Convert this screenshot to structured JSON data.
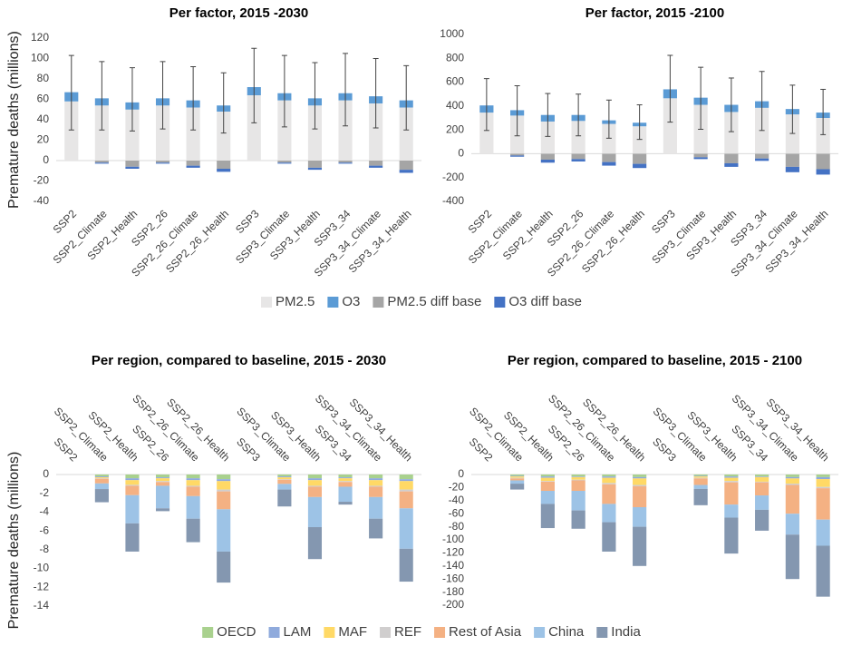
{
  "chart_data": [
    {
      "type": "bar",
      "stacked": true,
      "title": "Per factor, 2015 -2030",
      "y_label": "Premature deaths (millions)",
      "x_labels": "bottom",
      "legend": "bottom",
      "categories": [
        "SSP2",
        "SSP2_Climate",
        "SSP2_Health",
        "SSP2_26",
        "SSP2_26_Climate",
        "SSP2_26_Health",
        "SSP3",
        "SSP3_Climate",
        "SSP3_Health",
        "SSP3_34",
        "SSP3_34_Climate",
        "SSP3_34_Health"
      ],
      "series": [
        {
          "name": "PM2.5",
          "color": "#e7e6e6",
          "values": [
            58,
            54,
            50,
            54,
            52,
            48,
            64,
            59,
            54,
            59,
            56,
            52
          ]
        },
        {
          "name": "O3",
          "color": "#5b9bd5",
          "values": [
            9,
            7,
            7,
            7,
            7,
            6,
            8,
            7,
            7,
            7,
            7,
            7
          ]
        },
        {
          "name": "PM2.5 diff base",
          "color": "#a5a5a5",
          "values": [
            0,
            -2,
            -6,
            -2,
            -5,
            -8,
            0,
            -2,
            -7,
            -2,
            -5,
            -9
          ]
        },
        {
          "name": "O3 diff base",
          "color": "#4472c4",
          "values": [
            0,
            -1,
            -2,
            -1,
            -2,
            -3,
            0,
            -1,
            -2,
            -1,
            -2,
            -3
          ]
        }
      ],
      "error_bars": {
        "low": [
          30,
          30,
          29,
          31,
          30,
          27,
          37,
          33,
          31,
          34,
          32,
          30
        ],
        "high": [
          103,
          97,
          91,
          97,
          92,
          86,
          110,
          103,
          96,
          105,
          100,
          93
        ]
      },
      "ylim": [
        -40,
        120
      ],
      "yticks": [
        -40,
        -20,
        0,
        20,
        40,
        60,
        80,
        100,
        120
      ]
    },
    {
      "type": "bar",
      "stacked": true,
      "title": "Per factor, 2015 -2100",
      "x_labels": "bottom",
      "categories": [
        "SSP2",
        "SSP2_Climate",
        "SSP2_Health",
        "SSP2_26",
        "SSP2_26_Climate",
        "SSP2_26_Health",
        "SSP3",
        "SSP3_Climate",
        "SSP3_Health",
        "SSP3_34",
        "SSP3_34_Climate",
        "SSP3_34_Health"
      ],
      "series": [
        {
          "color": "#e7e6e6",
          "values": [
            345,
            320,
            270,
            275,
            250,
            230,
            465,
            410,
            350,
            385,
            330,
            300
          ]
        },
        {
          "color": "#5b9bd5",
          "values": [
            60,
            45,
            55,
            50,
            30,
            30,
            75,
            60,
            60,
            55,
            45,
            45
          ]
        },
        {
          "color": "#a5a5a5",
          "values": [
            0,
            -15,
            -50,
            -45,
            -70,
            -85,
            0,
            -30,
            -80,
            -40,
            -110,
            -130
          ]
        },
        {
          "color": "#4472c4",
          "values": [
            0,
            -10,
            -25,
            -20,
            -30,
            -35,
            0,
            -15,
            -30,
            -20,
            -45,
            -45
          ]
        }
      ],
      "error_bars": {
        "low": [
          195,
          150,
          145,
          150,
          130,
          120,
          265,
          205,
          185,
          195,
          170,
          160
        ],
        "high": [
          630,
          570,
          505,
          500,
          450,
          410,
          825,
          725,
          635,
          690,
          575,
          540
        ]
      },
      "ylim": [
        -400,
        1000
      ],
      "yticks": [
        -400,
        -200,
        0,
        200,
        400,
        600,
        800,
        1000
      ]
    },
    {
      "type": "bar",
      "stacked": true,
      "title": "Per region, compared to baseline, 2015 - 2030",
      "y_label": "Premature deaths (millions)",
      "x_labels": "top",
      "legend": "bottom",
      "categories": [
        "SSP2",
        "SSP2_Climate",
        "SSP2_Health",
        "SSP2_26",
        "SSP2_26_Climate",
        "SSP2_26_Health",
        "SSP3",
        "SSP3_Climate",
        "SSP3_Health",
        "SSP3_34",
        "SSP3_34_Climate",
        "SSP3_34_Health"
      ],
      "series": [
        {
          "name": "OECD",
          "color": "#a9d18e",
          "values": [
            0,
            -0.2,
            -0.4,
            -0.3,
            -0.4,
            -0.5,
            0,
            -0.2,
            -0.4,
            -0.3,
            -0.4,
            -0.5
          ]
        },
        {
          "name": "LAM",
          "color": "#8faadc",
          "values": [
            0,
            -0.1,
            -0.2,
            -0.1,
            -0.2,
            -0.2,
            0,
            -0.1,
            -0.2,
            -0.1,
            -0.2,
            -0.2
          ]
        },
        {
          "name": "MAF",
          "color": "#ffd966",
          "values": [
            0,
            -0.1,
            -0.5,
            -0.3,
            -0.6,
            -0.9,
            0,
            -0.2,
            -0.6,
            -0.3,
            -0.6,
            -0.9
          ]
        },
        {
          "name": "REF",
          "color": "#d0cece",
          "values": [
            0,
            -0.05,
            -0.1,
            -0.1,
            -0.1,
            -0.2,
            0,
            -0.05,
            -0.1,
            -0.1,
            -0.1,
            -0.2
          ]
        },
        {
          "name": "Rest of Asia",
          "color": "#f4b183",
          "values": [
            0,
            -0.5,
            -1.0,
            -0.4,
            -1.0,
            -1.9,
            0,
            -0.45,
            -1.1,
            -0.5,
            -1.1,
            -1.8
          ]
        },
        {
          "name": "China",
          "color": "#9dc3e6",
          "values": [
            0,
            -0.6,
            -3.0,
            -2.4,
            -2.4,
            -4.5,
            0,
            -0.6,
            -3.2,
            -1.6,
            -2.3,
            -4.3
          ]
        },
        {
          "name": "India",
          "color": "#8497b0",
          "values": [
            0,
            -1.4,
            -3.0,
            -0.3,
            -2.5,
            -3.3,
            0,
            -1.8,
            -3.4,
            -0.3,
            -2.1,
            -3.5
          ]
        }
      ],
      "ylim": [
        -14,
        0
      ],
      "yticks": [
        -14,
        -12,
        -10,
        -8,
        -6,
        -4,
        -2,
        0
      ]
    },
    {
      "type": "bar",
      "stacked": true,
      "title": "Per region, compared to baseline, 2015 - 2100",
      "x_labels": "top",
      "categories": [
        "SSP2",
        "SSP2_Climate",
        "SSP2_Health",
        "SSP2_26",
        "SSP2_26_Climate",
        "SSP2_26_Health",
        "SSP3",
        "SSP3_Climate",
        "SSP3_Health",
        "SSP3_34",
        "SSP3_34_Climate",
        "SSP3_34_Health"
      ],
      "series": [
        {
          "color": "#a9d18e",
          "values": [
            0,
            -2,
            -3,
            -3,
            -3,
            -4,
            0,
            -2,
            -3,
            -3,
            -4,
            -4
          ]
        },
        {
          "color": "#8faadc",
          "values": [
            0,
            -1,
            -2,
            -1,
            -2,
            -2,
            0,
            -1,
            -2,
            -1,
            -2,
            -3
          ]
        },
        {
          "color": "#ffd966",
          "values": [
            0,
            -2,
            -5,
            -4,
            -8,
            -10,
            0,
            -2,
            -5,
            -7,
            -8,
            -12
          ]
        },
        {
          "color": "#d0cece",
          "values": [
            0,
            -1,
            -1,
            -1,
            -2,
            -2,
            0,
            -1,
            -2,
            -1,
            -2,
            -2
          ]
        },
        {
          "color": "#f4b183",
          "values": [
            0,
            -3,
            -14,
            -16,
            -30,
            -32,
            0,
            -10,
            -34,
            -20,
            -44,
            -48
          ]
        },
        {
          "color": "#9dc3e6",
          "values": [
            0,
            -5,
            -20,
            -30,
            -28,
            -30,
            0,
            -6,
            -20,
            -22,
            -32,
            -40
          ]
        },
        {
          "color": "#8497b0",
          "values": [
            0,
            -9,
            -37,
            -28,
            -45,
            -60,
            0,
            -25,
            -55,
            -32,
            -68,
            -78
          ]
        }
      ],
      "ylim": [
        -200,
        0
      ],
      "yticks": [
        -200,
        -180,
        -160,
        -140,
        -120,
        -100,
        -80,
        -60,
        -40,
        -20,
        0
      ]
    }
  ]
}
